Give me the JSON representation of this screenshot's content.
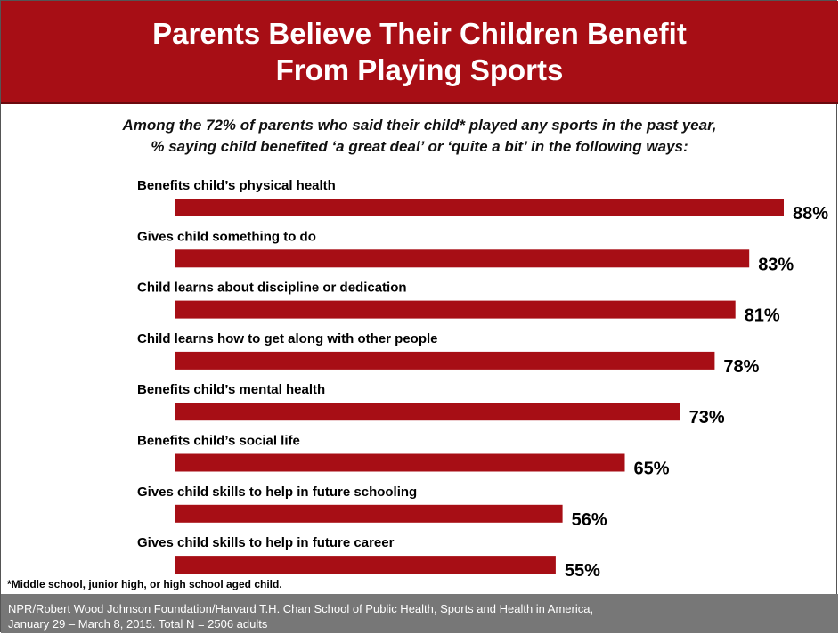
{
  "header": {
    "title_line1": "Parents Believe Their Children Benefit",
    "title_line2": "From Playing Sports"
  },
  "subtitle": {
    "line1": "Among the 72% of parents who said their child* played any sports in the past year,",
    "line2": "% saying child benefited ‘a great deal’ or ‘quite a bit’ in the following ways:"
  },
  "chart_data": {
    "type": "bar",
    "orientation": "horizontal",
    "categories": [
      "Benefits child’s physical health",
      "Gives child something to do",
      "Child learns about discipline or dedication",
      "Child learns how to get along with other people",
      "Benefits child’s mental health",
      "Benefits child’s social life",
      "Gives child skills to help in future schooling",
      "Gives child skills to help in future career"
    ],
    "values": [
      88,
      83,
      81,
      78,
      73,
      65,
      56,
      55
    ],
    "value_labels": [
      "88%",
      "83%",
      "81%",
      "78%",
      "73%",
      "65%",
      "56%",
      "55%"
    ],
    "bar_color": "#a70e15",
    "xlim": [
      0,
      88
    ],
    "grid": false,
    "legend": "none"
  },
  "footnote": "*Middle school, junior high, or high school aged child.",
  "source": {
    "line1": "NPR/Robert Wood Johnson Foundation/Harvard T.H. Chan School of Public Health, Sports and Health in America,",
    "line2": "January 29 – March 8, 2015. Total N = 2506 adults"
  },
  "colors": {
    "header_bg": "#a70e15",
    "source_bg": "#777777"
  }
}
